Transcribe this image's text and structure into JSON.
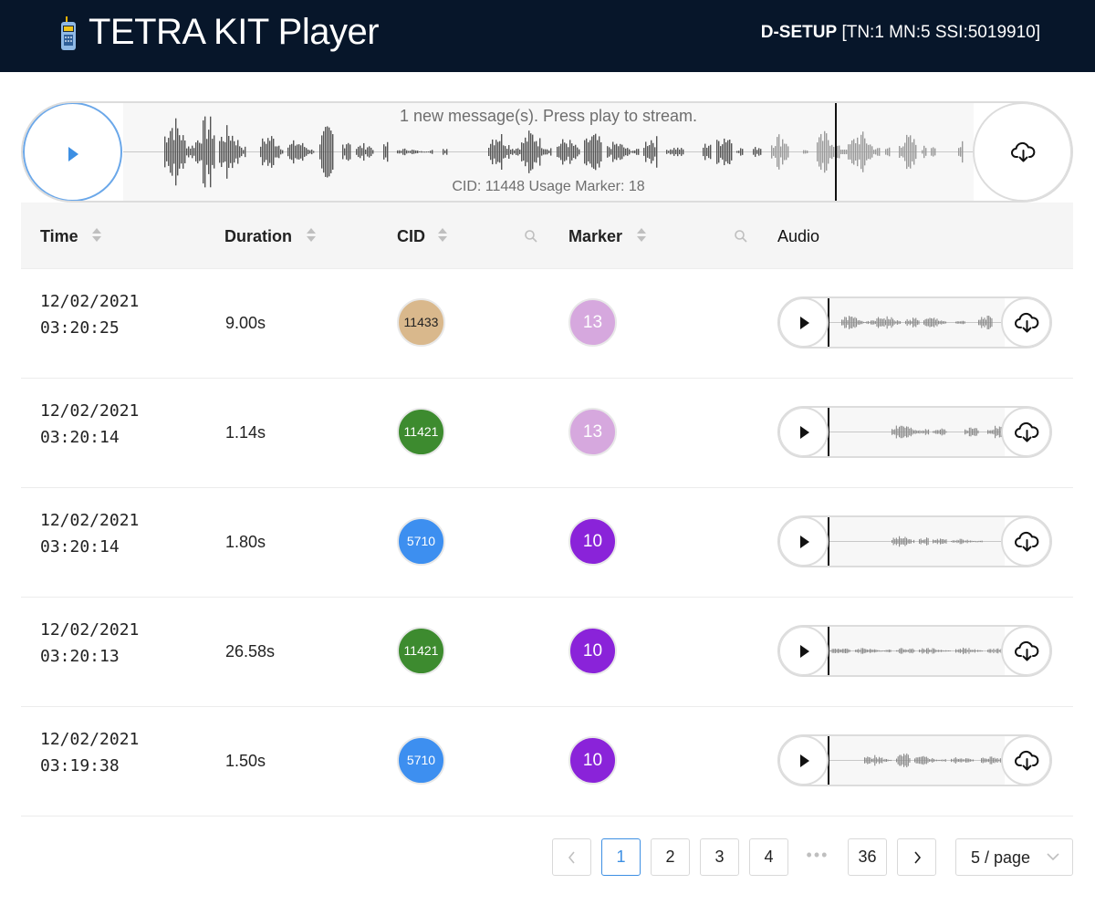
{
  "header": {
    "title": "TETRA KIT Player",
    "status_mode": "D-SETUP",
    "status_detail": "[TN:1 MN:5 SSI:5019910]"
  },
  "player": {
    "message": "1 new message(s). Press play to stream.",
    "info": "CID: 11448 Usage Marker: 18",
    "play_icon": "play-icon",
    "download_icon": "cloud-download-icon"
  },
  "table": {
    "columns": {
      "time": "Time",
      "duration": "Duration",
      "cid": "CID",
      "marker": "Marker",
      "audio": "Audio"
    },
    "rows": [
      {
        "date": "12/02/2021",
        "time": "03:20:25",
        "duration": "9.00s",
        "cid": "11433",
        "cid_color": "#d9b88c",
        "cid_text_color": "#222222",
        "marker": "13",
        "marker_color": "#d6a8de"
      },
      {
        "date": "12/02/2021",
        "time": "03:20:14",
        "duration": "1.14s",
        "cid": "11421",
        "cid_color": "#3d8b2f",
        "cid_text_color": "#ffffff",
        "marker": "13",
        "marker_color": "#d6a8de"
      },
      {
        "date": "12/02/2021",
        "time": "03:20:14",
        "duration": "1.80s",
        "cid": "5710",
        "cid_color": "#3d8ff0",
        "cid_text_color": "#ffffff",
        "marker": "10",
        "marker_color": "#8a23d9"
      },
      {
        "date": "12/02/2021",
        "time": "03:20:13",
        "duration": "26.58s",
        "cid": "11421",
        "cid_color": "#3d8b2f",
        "cid_text_color": "#ffffff",
        "marker": "10",
        "marker_color": "#8a23d9"
      },
      {
        "date": "12/02/2021",
        "time": "03:19:38",
        "duration": "1.50s",
        "cid": "5710",
        "cid_color": "#3d8ff0",
        "cid_text_color": "#ffffff",
        "marker": "10",
        "marker_color": "#8a23d9"
      }
    ]
  },
  "pagination": {
    "pages": [
      "1",
      "2",
      "3",
      "4",
      "36"
    ],
    "active": "1",
    "ellipsis": "•••",
    "page_size": "5 / page"
  },
  "colors": {
    "header_bg": "#07162a",
    "accent": "#3d8fe3"
  }
}
